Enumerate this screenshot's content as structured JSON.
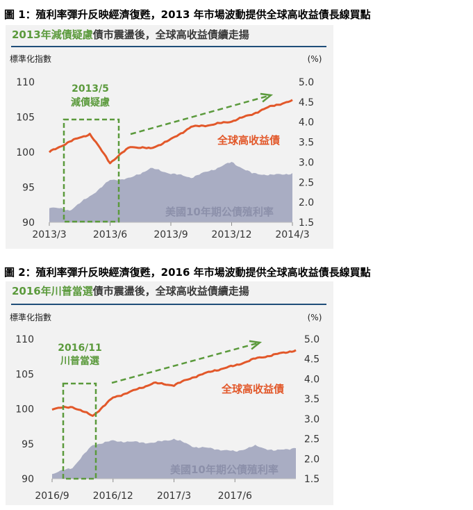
{
  "figures": [
    {
      "title": "圖 1：殖利率彈升反映經濟復甦，2013 年市場波動提供全球高收益債長線買點",
      "header_highlight": "2013年減債疑慮",
      "header_rest": "債市震盪後，全球高收益債續走揚",
      "left_axis_title": "標準化指數",
      "right_axis_title": "(%)",
      "annotation_lines": [
        "2013/5",
        "減債疑慮"
      ]
    },
    {
      "title": "圖 2：殖利率彈升反映經濟復甦，2016 年市場波動提供全球高收益債長線買點",
      "header_highlight": "2016年川普當選",
      "header_rest": "債市震盪後，全球高收益債續走揚",
      "left_axis_title": "標準化指數",
      "right_axis_title": "(%)",
      "annotation_lines": [
        "2016/11",
        "川普當選"
      ]
    }
  ],
  "colors": {
    "high_yield_line": "#e2582a",
    "treasury_area": "#a9adc3",
    "annotation_green": "#5b9a3c",
    "header_rule": "#1f4e79"
  },
  "chart_data": [
    {
      "type": "line",
      "x_ticks": [
        "2013/3",
        "2013/6",
        "2013/9",
        "2013/12",
        "2014/3"
      ],
      "x": [
        "2013/3",
        "2013/4",
        "2013/5",
        "2013/6",
        "2013/7",
        "2013/8",
        "2013/9",
        "2013/10",
        "2013/11",
        "2013/12",
        "2014/1",
        "2014/2",
        "2014/3"
      ],
      "ylim_left": [
        90,
        110
      ],
      "yticks_left": [
        90,
        95,
        100,
        105,
        110
      ],
      "ylim_right": [
        1.5,
        5.0
      ],
      "yticks_right": [
        "1.5",
        "2.0",
        "2.5",
        "3.0",
        "3.5",
        "4.0",
        "4.5",
        "5.0"
      ],
      "series": [
        {
          "name": "全球高收益債",
          "axis": "left",
          "values": [
            100.0,
            101.5,
            102.6,
            98.5,
            100.8,
            100.5,
            101.8,
            103.6,
            103.9,
            104.4,
            105.4,
            106.6,
            107.3
          ]
        },
        {
          "name": "美國10年期公債殖利率",
          "axis": "right",
          "style": "area",
          "values": [
            1.88,
            1.8,
            2.15,
            2.55,
            2.6,
            2.85,
            2.72,
            2.62,
            2.8,
            3.0,
            2.72,
            2.68,
            2.72
          ]
        }
      ]
    },
    {
      "type": "line",
      "x_ticks": [
        "2016/9",
        "2016/12",
        "2017/3",
        "2017/6"
      ],
      "x": [
        "2016/9",
        "2016/10",
        "2016/11",
        "2016/12",
        "2017/1",
        "2017/2",
        "2017/3",
        "2017/4",
        "2017/5",
        "2017/6",
        "2017/7",
        "2017/8",
        "2017/9"
      ],
      "ylim_left": [
        90,
        110
      ],
      "yticks_left": [
        90,
        95,
        100,
        105,
        110
      ],
      "ylim_right": [
        1.5,
        5.0
      ],
      "yticks_right": [
        "1.5",
        "2.0",
        "2.5",
        "3.0",
        "3.5",
        "4.0",
        "4.5",
        "5.0"
      ],
      "series": [
        {
          "name": "全球高收益債",
          "axis": "left",
          "values": [
            100.0,
            100.3,
            99.0,
            101.6,
            102.6,
            103.7,
            103.4,
            104.6,
            105.5,
            106.2,
            107.2,
            107.8,
            108.4
          ]
        },
        {
          "name": "美國10年期公債殖利率",
          "axis": "right",
          "style": "area",
          "values": [
            1.62,
            1.78,
            2.35,
            2.45,
            2.42,
            2.4,
            2.5,
            2.3,
            2.25,
            2.18,
            2.32,
            2.2,
            2.28
          ]
        }
      ]
    }
  ]
}
